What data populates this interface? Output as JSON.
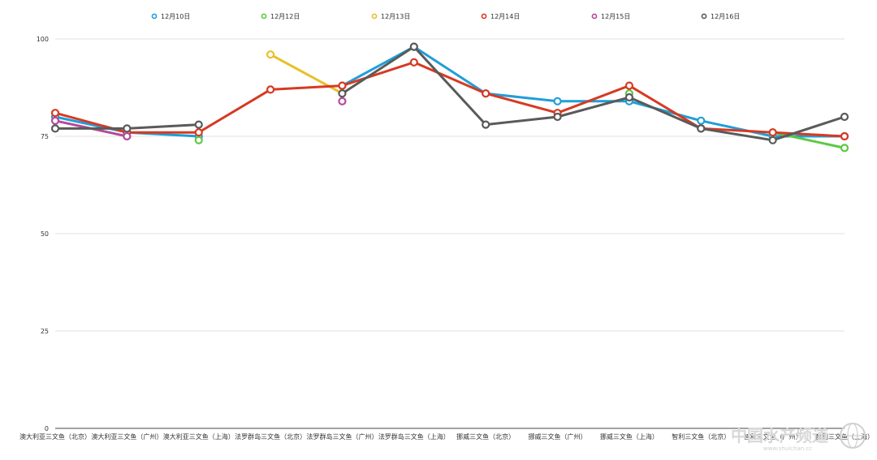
{
  "chart_data": {
    "type": "line",
    "categories": [
      "澳大利亚三文鱼（北京）",
      "澳大利亚三文鱼（广州）",
      "澳大利亚三文鱼（上海）",
      "法罗群岛三文鱼（北京）",
      "法罗群岛三文鱼（广州）",
      "法罗群岛三文鱼（上海）",
      "挪威三文鱼（北京）",
      "挪威三文鱼（广州）",
      "挪威三文鱼（上海）",
      "智利三文鱼（北京）",
      "智利三文鱼（广州）",
      "智利三文鱼（上海）"
    ],
    "series": [
      {
        "name": "12月10日",
        "color": "#1f9ed8",
        "values": [
          80,
          76,
          75,
          null,
          88,
          98,
          86,
          84,
          84,
          79,
          75,
          75
        ]
      },
      {
        "name": "12月12日",
        "color": "#5cc943",
        "values": [
          null,
          null,
          74,
          null,
          null,
          null,
          null,
          null,
          86,
          null,
          76,
          72
        ]
      },
      {
        "name": "12月13日",
        "color": "#e8c02a",
        "values": [
          null,
          75,
          null,
          96,
          86,
          null,
          null,
          null,
          null,
          77,
          null,
          null
        ]
      },
      {
        "name": "12月14日",
        "color": "#d63a22",
        "values": [
          81,
          76,
          76,
          87,
          88,
          94,
          86,
          81,
          88,
          77,
          76,
          75
        ]
      },
      {
        "name": "12月15日",
        "color": "#b44a9a",
        "values": [
          79,
          75,
          null,
          null,
          84,
          null,
          null,
          null,
          null,
          null,
          null,
          null
        ]
      },
      {
        "name": "12月16日",
        "color": "#5a5a5a",
        "values": [
          77,
          77,
          78,
          null,
          86,
          98,
          78,
          80,
          85,
          77,
          74,
          80
        ]
      }
    ],
    "yticks": [
      0,
      25,
      50,
      75,
      100
    ],
    "ylim": [
      0,
      100
    ],
    "grid": true,
    "legend_position": "top"
  },
  "watermark": {
    "text": "中国水产频道",
    "url": "www.shuichan.cc"
  }
}
